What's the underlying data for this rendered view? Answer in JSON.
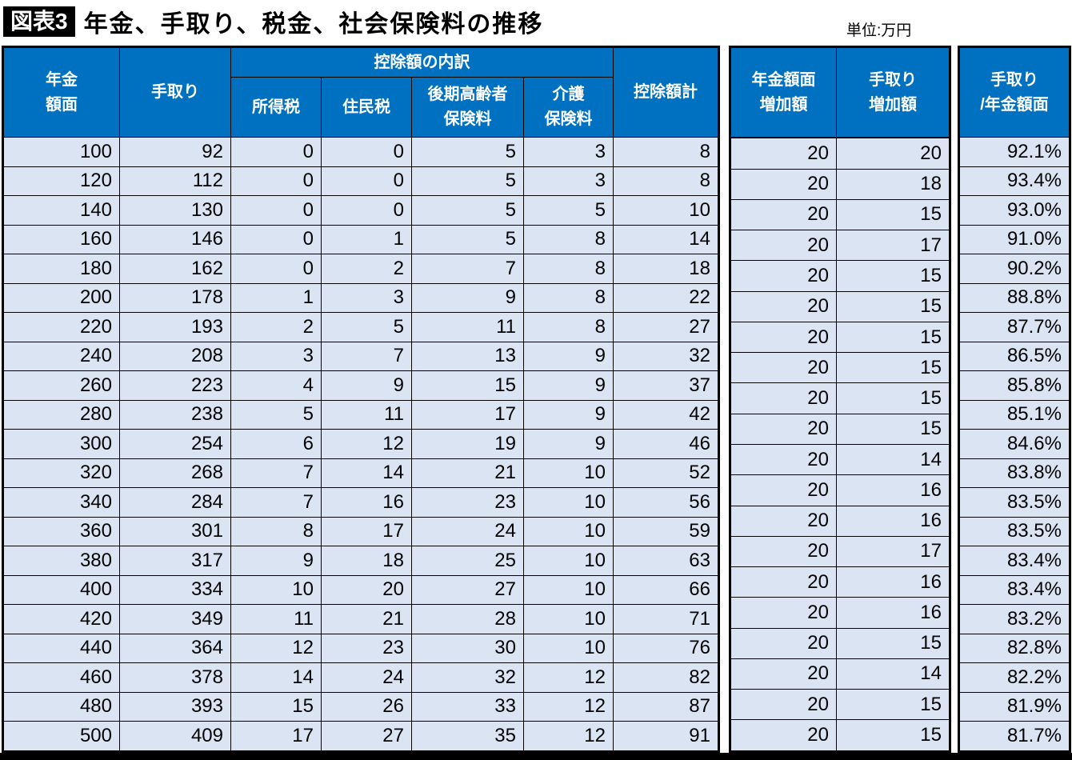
{
  "header": {
    "badge": "図表3",
    "title": "年金、手取り、税金、社会保険料の推移",
    "unit": "単位:万円"
  },
  "colors": {
    "header_bg": "#0070C0",
    "row_bg": "#DAE4F3",
    "border": "#000000",
    "badge_bg": "#000000"
  },
  "chart_data": {
    "type": "table",
    "title": "年金、手取り、税金、社会保険料の推移",
    "unit_label": "単位:万円",
    "main": {
      "group_header": "控除額の内訳",
      "col_pension": "年金\n額面",
      "col_takehome": "手取り",
      "col_income_tax": "所得税",
      "col_resident_tax": "住民税",
      "col_elderly_insurance": "後期高齢者\n保険料",
      "col_care_insurance": "介護\n保険料",
      "col_total_deduction": "控除額計",
      "rows": [
        [
          100,
          92,
          0,
          0,
          5,
          3,
          8
        ],
        [
          120,
          112,
          0,
          0,
          5,
          3,
          8
        ],
        [
          140,
          130,
          0,
          0,
          5,
          5,
          10
        ],
        [
          160,
          146,
          0,
          1,
          5,
          8,
          14
        ],
        [
          180,
          162,
          0,
          2,
          7,
          8,
          18
        ],
        [
          200,
          178,
          1,
          3,
          9,
          8,
          22
        ],
        [
          220,
          193,
          2,
          5,
          11,
          8,
          27
        ],
        [
          240,
          208,
          3,
          7,
          13,
          9,
          32
        ],
        [
          260,
          223,
          4,
          9,
          15,
          9,
          37
        ],
        [
          280,
          238,
          5,
          11,
          17,
          9,
          42
        ],
        [
          300,
          254,
          6,
          12,
          19,
          9,
          46
        ],
        [
          320,
          268,
          7,
          14,
          21,
          10,
          52
        ],
        [
          340,
          284,
          7,
          16,
          23,
          10,
          56
        ],
        [
          360,
          301,
          8,
          17,
          24,
          10,
          59
        ],
        [
          380,
          317,
          9,
          18,
          25,
          10,
          63
        ],
        [
          400,
          334,
          10,
          20,
          27,
          10,
          66
        ],
        [
          420,
          349,
          11,
          21,
          28,
          10,
          71
        ],
        [
          440,
          364,
          12,
          23,
          30,
          10,
          76
        ],
        [
          460,
          378,
          14,
          24,
          32,
          12,
          82
        ],
        [
          480,
          393,
          15,
          26,
          33,
          12,
          87
        ],
        [
          500,
          409,
          17,
          27,
          35,
          12,
          91
        ]
      ]
    },
    "increase": {
      "col_pension_increase": "年金額面\n増加額",
      "col_takehome_increase": "手取り\n増加額",
      "rows": [
        [
          "",
          ""
        ],
        [
          20,
          20
        ],
        [
          20,
          18
        ],
        [
          20,
          15
        ],
        [
          20,
          17
        ],
        [
          20,
          15
        ],
        [
          20,
          15
        ],
        [
          20,
          15
        ],
        [
          20,
          15
        ],
        [
          20,
          15
        ],
        [
          20,
          15
        ],
        [
          20,
          14
        ],
        [
          20,
          16
        ],
        [
          20,
          16
        ],
        [
          20,
          17
        ],
        [
          20,
          16
        ],
        [
          20,
          16
        ],
        [
          20,
          15
        ],
        [
          20,
          14
        ],
        [
          20,
          15
        ],
        [
          20,
          15
        ]
      ]
    },
    "ratio": {
      "col_ratio": "手取り\n/年金額面",
      "rows": [
        "92.1%",
        "93.4%",
        "93.0%",
        "91.0%",
        "90.2%",
        "88.8%",
        "87.7%",
        "86.5%",
        "85.8%",
        "85.1%",
        "84.6%",
        "83.8%",
        "83.5%",
        "83.5%",
        "83.4%",
        "83.4%",
        "83.2%",
        "82.8%",
        "82.2%",
        "81.9%",
        "81.7%"
      ]
    }
  }
}
